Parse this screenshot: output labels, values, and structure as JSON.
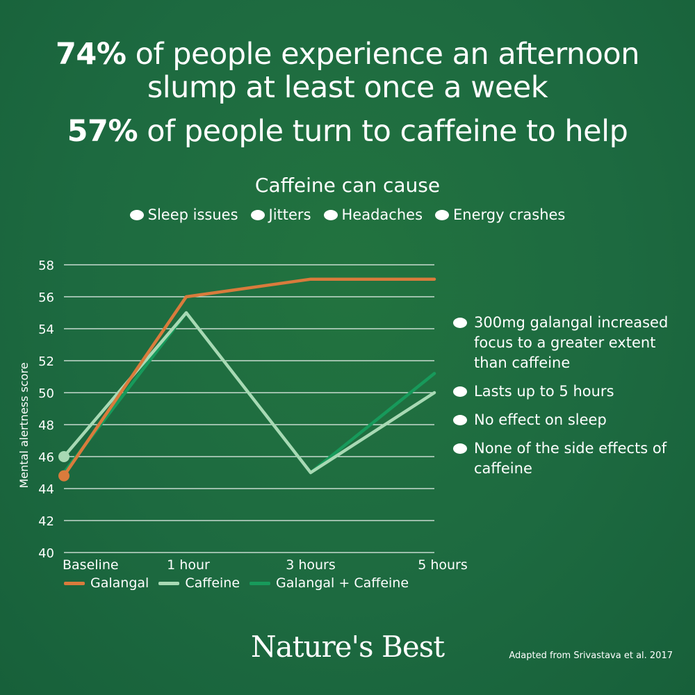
{
  "headline": {
    "line1_bold": "74%",
    "line1_rest": "of people experience an afternoon",
    "line2": "slump at least once a week",
    "line3_bold": "57%",
    "line3_rest": "of people turn to caffeine to help"
  },
  "side_effects": {
    "title": "Caffeine can cause",
    "items": [
      "Sleep issues",
      "Jitters",
      "Headaches",
      "Energy crashes"
    ]
  },
  "benefits": [
    "300mg galangal increased focus to a greater extent than caffeine",
    "Lasts up to 5 hours",
    "No effect on sleep",
    "None of the side effects of caffeine"
  ],
  "chart_data": {
    "type": "line",
    "categories": [
      "Baseline",
      "1 hour",
      "3 hours",
      "5 hours"
    ],
    "ylabel": "Mental alertness score",
    "ylim": [
      40,
      58
    ],
    "yticks": [
      40,
      42,
      44,
      46,
      48,
      50,
      52,
      54,
      56,
      58
    ],
    "grid": true,
    "legend_position": "bottom-left",
    "series": [
      {
        "name": "Galangal",
        "color": "#d97b3c",
        "values": [
          44.8,
          56,
          57.1,
          57.1
        ]
      },
      {
        "name": "Caffeine",
        "color": "#a8d9b4",
        "values": [
          46,
          55,
          45,
          50
        ]
      },
      {
        "name": "Galangal + Caffeine",
        "color": "#179a5b",
        "values": [
          45,
          55,
          45,
          51.2
        ]
      }
    ]
  },
  "logo": {
    "text": "Nature's Best"
  },
  "source": "Adapted from Srivastava et al. 2017"
}
